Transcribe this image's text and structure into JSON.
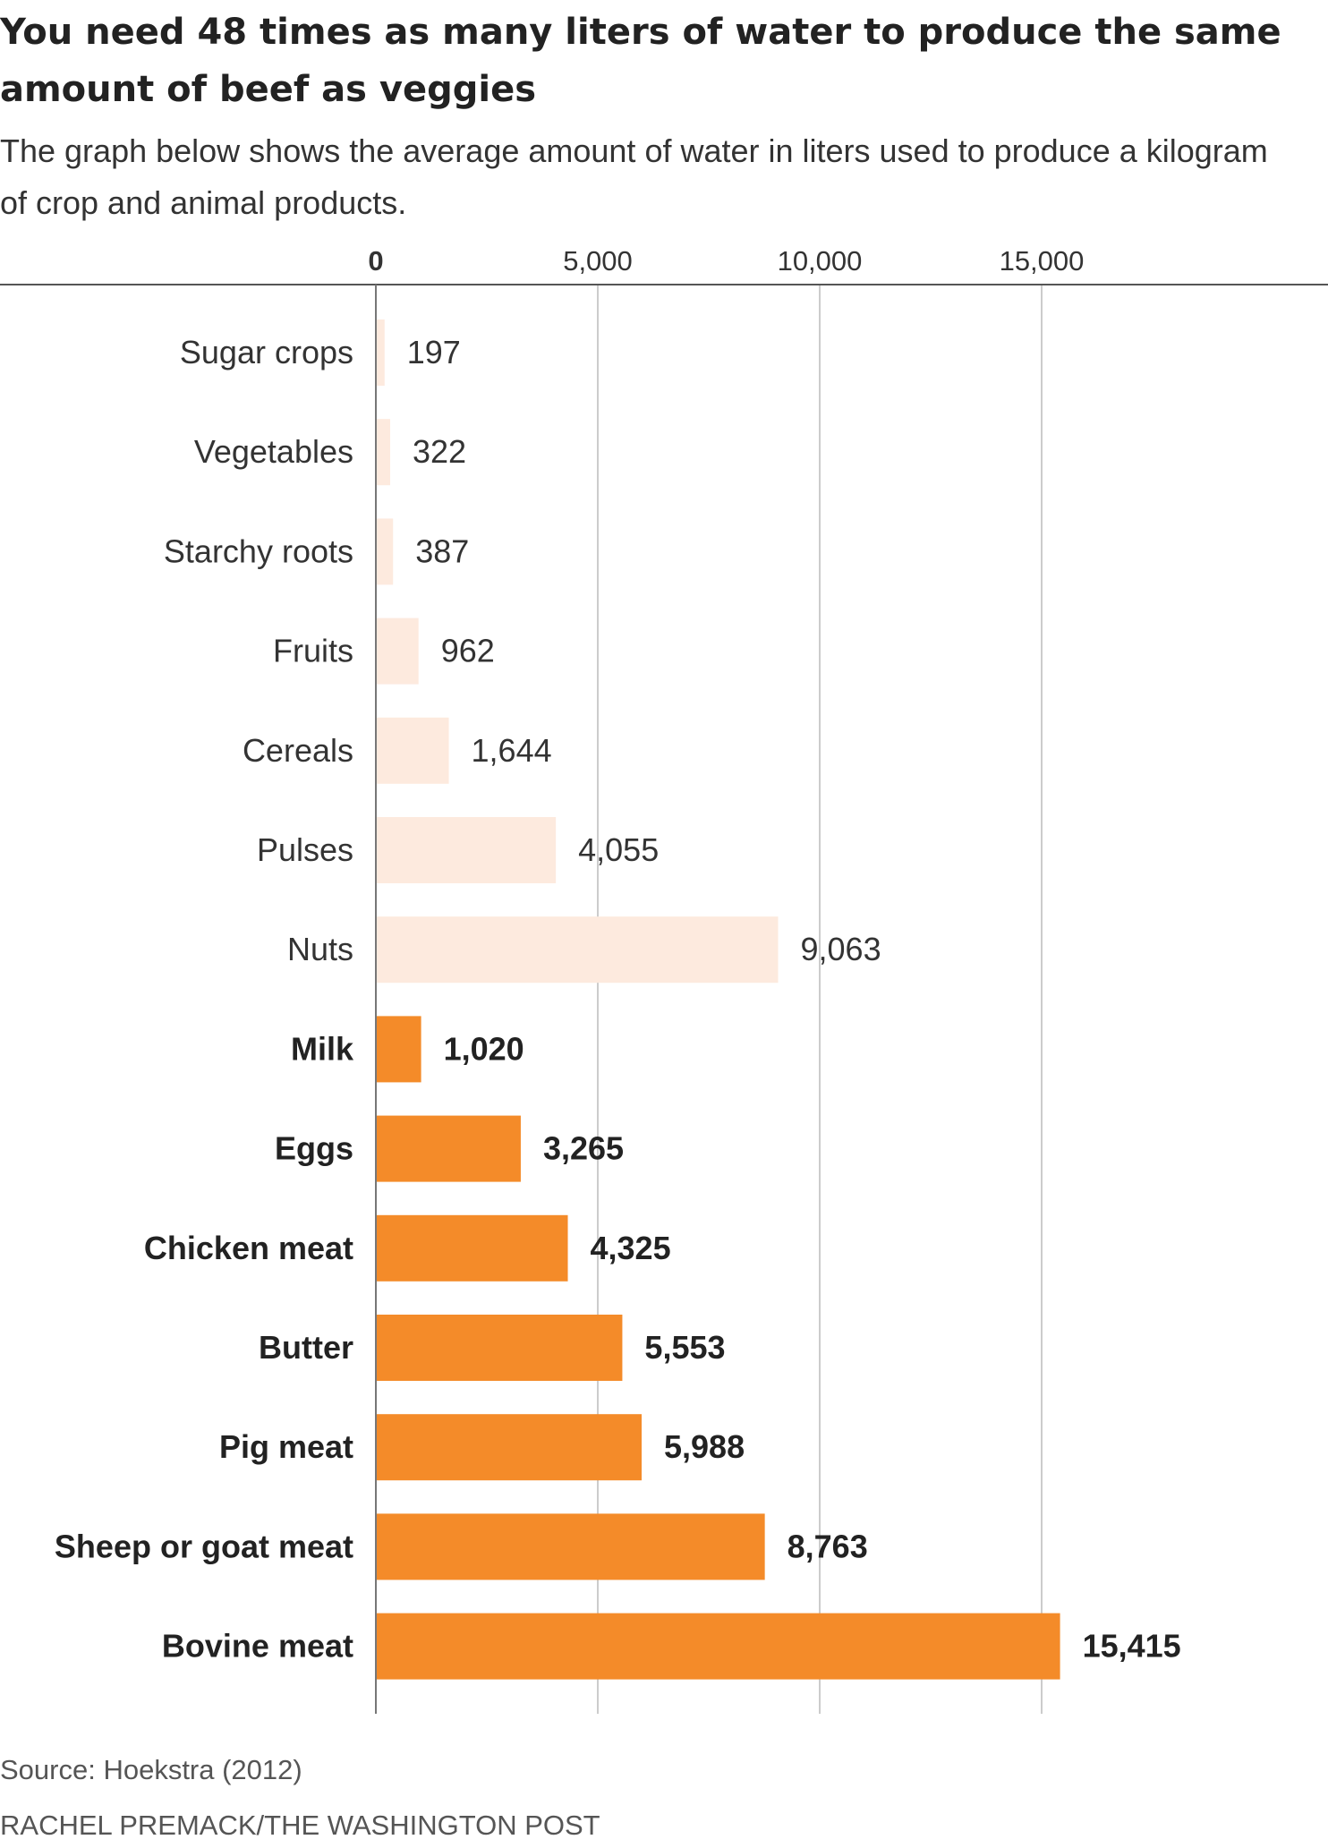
{
  "title": "You need 48 times as many liters of water to produce the same amount of beef as veggies",
  "subtitle": "The graph below shows the average amount of water in liters used to produce a kilogram of crop and animal products.",
  "source": "Source: Hoekstra (2012)",
  "credit": "RACHEL PREMACK/THE WASHINGTON POST",
  "colors": {
    "crop": "#fdeade",
    "animal": "#f48b29",
    "grid": "#cccccc",
    "axis": "#555555"
  },
  "chart_data": {
    "type": "bar",
    "orientation": "horizontal",
    "title": "You need 48 times as many liters of water to produce the same amount of beef as veggies",
    "subtitle": "The graph below shows the average amount of water in liters used to produce a kilogram of crop and animal products.",
    "xlim": [
      0,
      19000
    ],
    "x_ticks": [
      0,
      5000,
      10000,
      15000
    ],
    "x_tick_labels": [
      "0",
      "5,000",
      "10,000",
      "15,000"
    ],
    "x_axis_position": "top",
    "grid": true,
    "categories": [
      "Sugar crops",
      "Vegetables",
      "Starchy roots",
      "Fruits",
      "Cereals",
      "Pulses",
      "Nuts",
      "Milk",
      "Eggs",
      "Chicken meat",
      "Butter",
      "Pig meat",
      "Sheep or goat meat",
      "Bovine meat"
    ],
    "values": [
      197,
      322,
      387,
      962,
      1644,
      4055,
      9063,
      1020,
      3265,
      4325,
      5553,
      5988,
      8763,
      15415
    ],
    "value_labels": [
      "197",
      "322",
      "387",
      "962",
      "1,644",
      "4,055",
      "9,063",
      "1,020",
      "3,265",
      "4,325",
      "5,553",
      "5,988",
      "8,763",
      "15,415"
    ],
    "group": [
      "crop",
      "crop",
      "crop",
      "crop",
      "crop",
      "crop",
      "crop",
      "animal",
      "animal",
      "animal",
      "animal",
      "animal",
      "animal",
      "animal"
    ]
  }
}
